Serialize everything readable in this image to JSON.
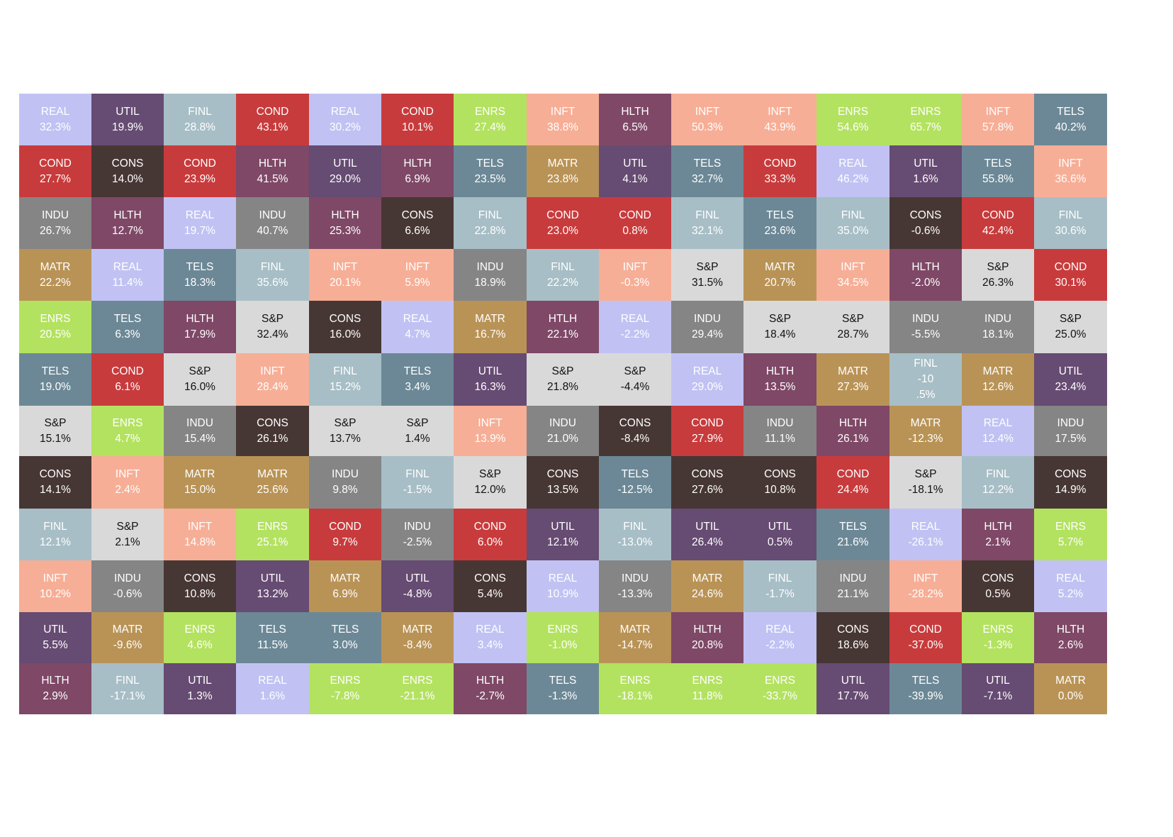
{
  "chart_data": {
    "type": "table",
    "colors": {
      "REAL": "#c1c2f3",
      "UTIL": "#664b72",
      "FINL": "#a7bec6",
      "COND": "#c83b3c",
      "ENRS": "#b3e260",
      "INFT": "#f7ae96",
      "HLTH": "#7e4866",
      "TELS": "#6c8896",
      "CONS": "#473734",
      "MATR": "#b99356",
      "INDU": "#858585",
      "S&P": "#d9d9d9"
    },
    "text_colors": {
      "REAL": "#ffffff",
      "UTIL": "#ffffff",
      "FINL": "#ffffff",
      "COND": "#ffffff",
      "ENRS": "#ffffff",
      "INFT": "#ffffff",
      "HLTH": "#ffffff",
      "TELS": "#ffffff",
      "CONS": "#ffffff",
      "MATR": "#ffffff",
      "INDU": "#ffffff",
      "S&P": "#111111"
    },
    "columns": [
      [
        [
          "REAL",
          "32.3%"
        ],
        [
          "COND",
          "27.7%"
        ],
        [
          "INDU",
          "26.7%"
        ],
        [
          "MATR",
          "22.2%"
        ],
        [
          "ENRS",
          "20.5%"
        ],
        [
          "TELS",
          "19.0%"
        ],
        [
          "S&P",
          "15.1%"
        ],
        [
          "CONS",
          "14.1%"
        ],
        [
          "FINL",
          "12.1%"
        ],
        [
          "INFT",
          "10.2%"
        ],
        [
          "UTIL",
          "5.5%"
        ],
        [
          "HLTH",
          "2.9%"
        ]
      ],
      [
        [
          "UTIL",
          "19.9%"
        ],
        [
          "CONS",
          "14.0%"
        ],
        [
          "HLTH",
          "12.7%"
        ],
        [
          "REAL",
          "11.4%"
        ],
        [
          "TELS",
          "6.3%"
        ],
        [
          "COND",
          "6.1%"
        ],
        [
          "ENRS",
          "4.7%"
        ],
        [
          "INFT",
          "2.4%"
        ],
        [
          "S&P",
          "2.1%"
        ],
        [
          "INDU",
          "-0.6%"
        ],
        [
          "MATR",
          "-9.6%"
        ],
        [
          "FINL",
          "-17.1%"
        ]
      ],
      [
        [
          "FINL",
          "28.8%"
        ],
        [
          "COND",
          "23.9%"
        ],
        [
          "REAL",
          "19.7%"
        ],
        [
          "TELS",
          "18.3%"
        ],
        [
          "HLTH",
          "17.9%"
        ],
        [
          "S&P",
          "16.0%"
        ],
        [
          "INDU",
          "15.4%"
        ],
        [
          "MATR",
          "15.0%"
        ],
        [
          "INFT",
          "14.8%"
        ],
        [
          "CONS",
          "10.8%"
        ],
        [
          "ENRS",
          "4.6%"
        ],
        [
          "UTIL",
          "1.3%"
        ]
      ],
      [
        [
          "COND",
          "43.1%"
        ],
        [
          "HLTH",
          "41.5%"
        ],
        [
          "INDU",
          "40.7%"
        ],
        [
          "FINL",
          "35.6%"
        ],
        [
          "S&P",
          "32.4%"
        ],
        [
          "INFT",
          "28.4%"
        ],
        [
          "CONS",
          "26.1%"
        ],
        [
          "MATR",
          "25.6%"
        ],
        [
          "ENRS",
          "25.1%"
        ],
        [
          "UTIL",
          "13.2%"
        ],
        [
          "TELS",
          "11.5%"
        ],
        [
          "REAL",
          "1.6%"
        ]
      ],
      [
        [
          "REAL",
          "30.2%"
        ],
        [
          "UTIL",
          "29.0%"
        ],
        [
          "HLTH",
          "25.3%"
        ],
        [
          "INFT",
          "20.1%"
        ],
        [
          "CONS",
          "16.0%"
        ],
        [
          "FINL",
          "15.2%"
        ],
        [
          "S&P",
          "13.7%"
        ],
        [
          "INDU",
          "9.8%"
        ],
        [
          "COND",
          "9.7%"
        ],
        [
          "MATR",
          "6.9%"
        ],
        [
          "TELS",
          "3.0%"
        ],
        [
          "ENRS",
          "-7.8%"
        ]
      ],
      [
        [
          "COND",
          "10.1%"
        ],
        [
          "HLTH",
          "6.9%"
        ],
        [
          "CONS",
          "6.6%"
        ],
        [
          "INFT",
          "5.9%"
        ],
        [
          "REAL",
          "4.7%"
        ],
        [
          "TELS",
          "3.4%"
        ],
        [
          "S&P",
          "1.4%"
        ],
        [
          "FINL",
          "-1.5%"
        ],
        [
          "INDU",
          "-2.5%"
        ],
        [
          "UTIL",
          "-4.8%"
        ],
        [
          "MATR",
          "-8.4%"
        ],
        [
          "ENRS",
          "-21.1%"
        ]
      ],
      [
        [
          "ENRS",
          "27.4%"
        ],
        [
          "TELS",
          "23.5%"
        ],
        [
          "FINL",
          "22.8%"
        ],
        [
          "INDU",
          "18.9%"
        ],
        [
          "MATR",
          "16.7%"
        ],
        [
          "UTIL",
          "16.3%"
        ],
        [
          "INFT",
          "13.9%"
        ],
        [
          "S&P",
          "12.0%"
        ],
        [
          "COND",
          "6.0%"
        ],
        [
          "CONS",
          "5.4%"
        ],
        [
          "REAL",
          "3.4%"
        ],
        [
          "HLTH",
          "-2.7%"
        ]
      ],
      [
        [
          "INFT",
          "38.8%"
        ],
        [
          "MATR",
          "23.8%"
        ],
        [
          "COND",
          "23.0%"
        ],
        [
          "FINL",
          "22.2%"
        ],
        [
          "HTLH",
          "22.1%"
        ],
        [
          "S&P",
          "21.8%"
        ],
        [
          "INDU",
          "21.0%"
        ],
        [
          "CONS",
          "13.5%"
        ],
        [
          "UTIL",
          "12.1%"
        ],
        [
          "REAL",
          "10.9%"
        ],
        [
          "ENRS",
          "-1.0%"
        ],
        [
          "TELS",
          "-1.3%"
        ]
      ],
      [
        [
          "HLTH",
          "6.5%"
        ],
        [
          "UTIL",
          "4.1%"
        ],
        [
          "COND",
          "0.8%"
        ],
        [
          "INFT",
          "-0.3%"
        ],
        [
          "REAL",
          "-2.2%"
        ],
        [
          "S&P",
          "-4.4%"
        ],
        [
          "CONS",
          "-8.4%"
        ],
        [
          "TELS",
          "-12.5%"
        ],
        [
          "FINL",
          "-13.0%"
        ],
        [
          "INDU",
          "-13.3%"
        ],
        [
          "MATR",
          "-14.7%"
        ],
        [
          "ENRS",
          "-18.1%"
        ]
      ],
      [
        [
          "INFT",
          "50.3%"
        ],
        [
          "TELS",
          "32.7%"
        ],
        [
          "FINL",
          "32.1%"
        ],
        [
          "S&P",
          "31.5%"
        ],
        [
          "INDU",
          "29.4%"
        ],
        [
          "REAL",
          "29.0%"
        ],
        [
          "COND",
          "27.9%"
        ],
        [
          "CONS",
          "27.6%"
        ],
        [
          "UTIL",
          "26.4%"
        ],
        [
          "MATR",
          "24.6%"
        ],
        [
          "HLTH",
          "20.8%"
        ],
        [
          "ENRS",
          "11.8%"
        ]
      ],
      [
        [
          "INFT",
          "43.9%"
        ],
        [
          "COND",
          "33.3%"
        ],
        [
          "TELS",
          "23.6%"
        ],
        [
          "MATR",
          "20.7%"
        ],
        [
          "S&P",
          "18.4%"
        ],
        [
          "HLTH",
          "13.5%"
        ],
        [
          "INDU",
          "11.1%"
        ],
        [
          "CONS",
          "10.8%"
        ],
        [
          "UTIL",
          "0.5%"
        ],
        [
          "FINL",
          "-1.7%"
        ],
        [
          "REAL",
          "-2.2%"
        ],
        [
          "ENRS",
          "-33.7%"
        ]
      ],
      [
        [
          "ENRS",
          "54.6%"
        ],
        [
          "REAL",
          "46.2%"
        ],
        [
          "FINL",
          "35.0%"
        ],
        [
          "INFT",
          "34.5%"
        ],
        [
          "S&P",
          "28.7%"
        ],
        [
          "MATR",
          "27.3%"
        ],
        [
          "HLTH",
          "26.1%"
        ],
        [
          "COND",
          "24.4%"
        ],
        [
          "TELS",
          "21.6%"
        ],
        [
          "INDU",
          "21.1%"
        ],
        [
          "CONS",
          "18.6%"
        ],
        [
          "UTIL",
          "17.7%"
        ]
      ],
      [
        [
          "ENRS",
          "65.7%"
        ],
        [
          "UTIL",
          "1.6%"
        ],
        [
          "CONS",
          "-0.6%"
        ],
        [
          "HLTH",
          "-2.0%"
        ],
        [
          "INDU",
          "-5.5%"
        ],
        [
          "FINL",
          "-10\n.5%"
        ],
        [
          "MATR",
          "-12.3%"
        ],
        [
          "S&P",
          "-18.1%"
        ],
        [
          "REAL",
          "-26.1%"
        ],
        [
          "INFT",
          "-28.2%"
        ],
        [
          "COND",
          "-37.0%"
        ],
        [
          "TELS",
          "-39.9%"
        ]
      ],
      [
        [
          "INFT",
          "57.8%"
        ],
        [
          "TELS",
          "55.8%"
        ],
        [
          "COND",
          "42.4%"
        ],
        [
          "S&P",
          "26.3%"
        ],
        [
          "INDU",
          "18.1%"
        ],
        [
          "MATR",
          "12.6%"
        ],
        [
          "REAL",
          "12.4%"
        ],
        [
          "FINL",
          "12.2%"
        ],
        [
          "HLTH",
          "2.1%"
        ],
        [
          "CONS",
          "0.5%"
        ],
        [
          "ENRS",
          "-1.3%"
        ],
        [
          "UTIL",
          "-7.1%"
        ]
      ],
      [
        [
          "TELS",
          "40.2%"
        ],
        [
          "INFT",
          "36.6%"
        ],
        [
          "FINL",
          "30.6%"
        ],
        [
          "COND",
          "30.1%"
        ],
        [
          "S&P",
          "25.0%"
        ],
        [
          "UTIL",
          "23.4%"
        ],
        [
          "INDU",
          "17.5%"
        ],
        [
          "CONS",
          "14.9%"
        ],
        [
          "ENRS",
          "5.7%"
        ],
        [
          "REAL",
          "5.2%"
        ],
        [
          "HLTH",
          "2.6%"
        ],
        [
          "MATR",
          "0.0%"
        ]
      ]
    ]
  }
}
